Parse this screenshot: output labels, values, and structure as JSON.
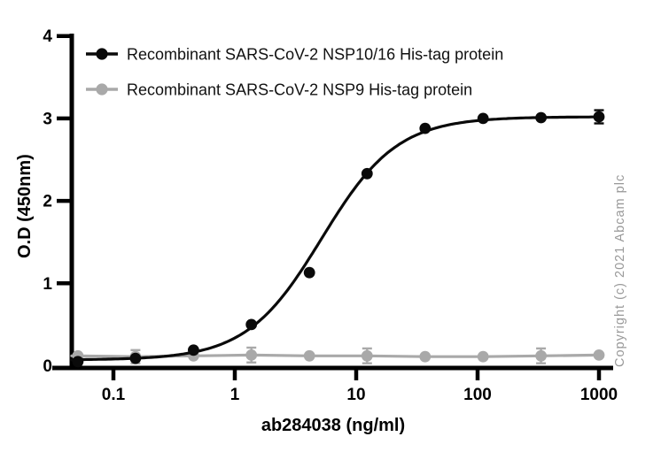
{
  "copyright_notice": "Copyright (c) 2021 Abcam plc",
  "chart_data": {
    "type": "line",
    "title": "",
    "xlabel": "ab284038 (ng/ml)",
    "ylabel": "O.D (450nm)",
    "x_scale": "log10",
    "xlim": [
      0.045,
      1100
    ],
    "ylim": [
      0,
      4
    ],
    "x_tick_labels": [
      "0.1",
      "1",
      "10",
      "100",
      "1000"
    ],
    "y_tick_labels": [
      "0",
      "1",
      "2",
      "3",
      "4"
    ],
    "grid": false,
    "legend_position": "top-left-inside",
    "axis_color": "#000000",
    "series": [
      {
        "name": "Recombinant SARS-CoV-2 NSP10/16 His-tag protein",
        "color": "#0a0a0a",
        "marker": "filled-circle",
        "x": [
          0.051,
          0.152,
          0.457,
          1.37,
          4.12,
          12.3,
          37,
          111,
          333,
          1000
        ],
        "y": [
          0.05,
          0.09,
          0.19,
          0.5,
          1.13,
          2.33,
          2.88,
          3.0,
          3.01,
          3.02
        ],
        "yerr": [
          0,
          0,
          0,
          0,
          0,
          0,
          0,
          0,
          0,
          0.08
        ],
        "fit_curve": {
          "model": "4PL",
          "bottom": 0.07,
          "top": 3.02,
          "ec50": 5.2,
          "hill": 1.4
        }
      },
      {
        "name": "Recombinant SARS-CoV-2 NSP9 His-tag protein",
        "color": "#a9a9a9",
        "marker": "filled-circle",
        "x": [
          0.051,
          0.152,
          0.457,
          1.37,
          4.12,
          12.3,
          37,
          111,
          333,
          1000
        ],
        "y": [
          0.12,
          0.11,
          0.12,
          0.13,
          0.12,
          0.12,
          0.11,
          0.11,
          0.12,
          0.13
        ],
        "yerr": [
          0.02,
          0.08,
          0.02,
          0.09,
          0.02,
          0.09,
          0.02,
          0.02,
          0.09,
          0.02
        ],
        "fit_curve": null
      }
    ]
  }
}
